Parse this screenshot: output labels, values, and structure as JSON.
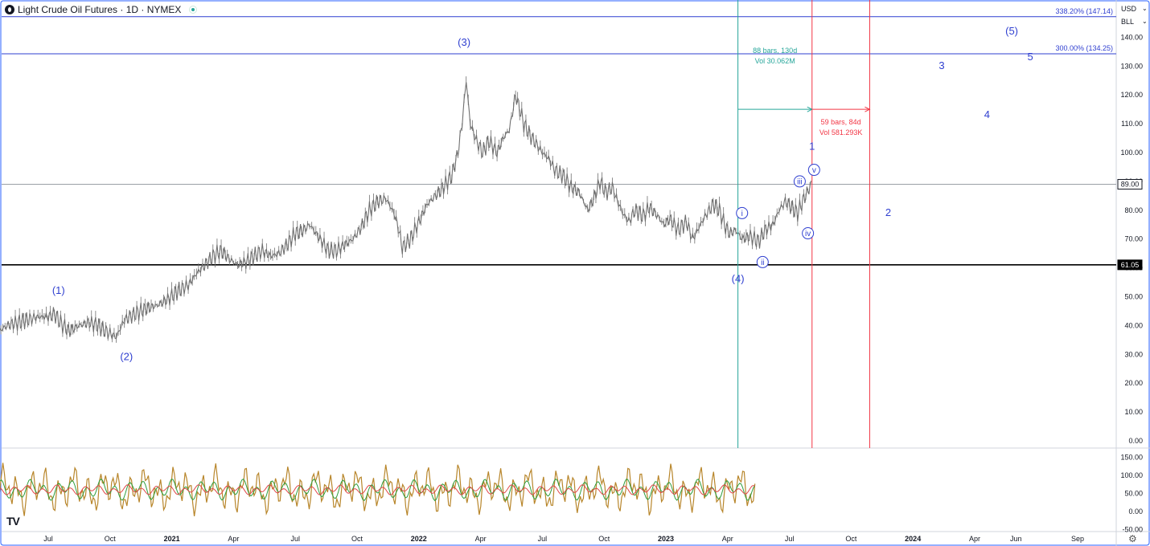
{
  "header": {
    "title": "Light Crude Oil Futures · 1D · NYMEX"
  },
  "price_axis": {
    "currency": "USD",
    "unit": "BLL"
  },
  "chart_data": {
    "type": "line",
    "symbol": "Light Crude Oil Futures",
    "interval": "1D",
    "exchange": "NYMEX",
    "y_axis_range": [
      0,
      150
    ],
    "y_ticks": [
      "140.00",
      "130.00",
      "120.00",
      "110.00",
      "100.00",
      "90.00",
      "80.00",
      "70.00",
      "60.00",
      "50.00",
      "40.00",
      "30.00",
      "20.00",
      "10.00",
      "0.00"
    ],
    "x_ticks": [
      "Jul",
      "Oct",
      "2021",
      "Apr",
      "Jul",
      "Oct",
      "2022",
      "Apr",
      "Jul",
      "Oct",
      "2023",
      "Apr",
      "Jul",
      "Oct",
      "2024",
      "Apr",
      "Jun",
      "Sep"
    ],
    "x_tick_positions_months": [
      6,
      9,
      12,
      15,
      18,
      21,
      24,
      27,
      30,
      33,
      36,
      39,
      42,
      45,
      48,
      51,
      53,
      56
    ],
    "price_series": [
      [
        2.8,
        15
      ],
      [
        3.0,
        28
      ],
      [
        3.3,
        33
      ],
      [
        3.6,
        38
      ],
      [
        4.0,
        40
      ],
      [
        4.5,
        41
      ],
      [
        5.0,
        42
      ],
      [
        5.5,
        43
      ],
      [
        6.0,
        43
      ],
      [
        6.3,
        44
      ],
      [
        6.6,
        41
      ],
      [
        7.0,
        38
      ],
      [
        7.5,
        40
      ],
      [
        8.0,
        41
      ],
      [
        8.4,
        40
      ],
      [
        8.8,
        38
      ],
      [
        9.3,
        36
      ],
      [
        9.7,
        42
      ],
      [
        10.2,
        44
      ],
      [
        10.8,
        46
      ],
      [
        11.3,
        47
      ],
      [
        11.8,
        49
      ],
      [
        12.3,
        52
      ],
      [
        12.8,
        54
      ],
      [
        13.2,
        58
      ],
      [
        13.6,
        61
      ],
      [
        14.0,
        64
      ],
      [
        14.4,
        66
      ],
      [
        14.8,
        63
      ],
      [
        15.2,
        61
      ],
      [
        15.6,
        62
      ],
      [
        16.0,
        64
      ],
      [
        16.4,
        66
      ],
      [
        16.8,
        64
      ],
      [
        17.2,
        65
      ],
      [
        17.6,
        68
      ],
      [
        18.0,
        72
      ],
      [
        18.4,
        73
      ],
      [
        18.7,
        75
      ],
      [
        19.0,
        72
      ],
      [
        19.3,
        69
      ],
      [
        19.6,
        66
      ],
      [
        20.0,
        66
      ],
      [
        20.4,
        68
      ],
      [
        20.8,
        70
      ],
      [
        21.2,
        74
      ],
      [
        21.6,
        80
      ],
      [
        22.0,
        83
      ],
      [
        22.4,
        84
      ],
      [
        22.8,
        79
      ],
      [
        23.0,
        74
      ],
      [
        23.2,
        67
      ],
      [
        23.6,
        70
      ],
      [
        24.0,
        76
      ],
      [
        24.4,
        82
      ],
      [
        24.8,
        85
      ],
      [
        25.2,
        88
      ],
      [
        25.6,
        92
      ],
      [
        25.9,
        100
      ],
      [
        26.1,
        110
      ],
      [
        26.3,
        125
      ],
      [
        26.5,
        110
      ],
      [
        26.8,
        104
      ],
      [
        27.1,
        100
      ],
      [
        27.4,
        104
      ],
      [
        27.8,
        100
      ],
      [
        28.1,
        105
      ],
      [
        28.4,
        108
      ],
      [
        28.7,
        120
      ],
      [
        28.9,
        115
      ],
      [
        29.1,
        110
      ],
      [
        29.4,
        106
      ],
      [
        29.8,
        102
      ],
      [
        30.0,
        100
      ],
      [
        30.3,
        98
      ],
      [
        30.6,
        94
      ],
      [
        31.0,
        92
      ],
      [
        31.4,
        88
      ],
      [
        31.8,
        86
      ],
      [
        32.2,
        80
      ],
      [
        32.5,
        84
      ],
      [
        32.8,
        90
      ],
      [
        33.1,
        86
      ],
      [
        33.4,
        88
      ],
      [
        33.6,
        84
      ],
      [
        33.9,
        79
      ],
      [
        34.2,
        76
      ],
      [
        34.5,
        80
      ],
      [
        34.9,
        78
      ],
      [
        35.2,
        81
      ],
      [
        35.6,
        78
      ],
      [
        35.9,
        75
      ],
      [
        36.2,
        77
      ],
      [
        36.6,
        73
      ],
      [
        37.0,
        76
      ],
      [
        37.3,
        70
      ],
      [
        37.6,
        74
      ],
      [
        38.0,
        79
      ],
      [
        38.3,
        82
      ],
      [
        38.6,
        80
      ],
      [
        38.9,
        74
      ],
      [
        39.1,
        72
      ],
      [
        39.4,
        73
      ],
      [
        39.7,
        70
      ],
      [
        40.1,
        71
      ],
      [
        40.5,
        69
      ],
      [
        40.8,
        73
      ],
      [
        41.2,
        75
      ],
      [
        41.5,
        80
      ],
      [
        41.8,
        83
      ],
      [
        42.1,
        81
      ],
      [
        42.4,
        79
      ],
      [
        42.7,
        84
      ],
      [
        43.0,
        88
      ],
      [
        43.1,
        90
      ]
    ],
    "lines": [
      {
        "label": "338.20% (147.14)",
        "value": 147.14,
        "color": "#2f3fd0"
      },
      {
        "label": "300.00% (134.25)",
        "value": 134.25,
        "color": "#2f3fd0"
      },
      {
        "label": "89.00",
        "value": 89.0,
        "color": "#9aa0a6"
      },
      {
        "label": "61.05",
        "value": 61.05,
        "color": "#000000"
      }
    ],
    "price_labels": [
      "89.00",
      "61.05"
    ],
    "wave_labels": [
      {
        "text": "(1)",
        "t": 6.5,
        "v": 51
      },
      {
        "text": "(2)",
        "t": 9.8,
        "v": 28
      },
      {
        "text": "(3)",
        "t": 26.2,
        "v": 137
      },
      {
        "text": "(4)",
        "t": 39.5,
        "v": 55
      },
      {
        "text": "(5)",
        "t": 52.8,
        "v": 141
      },
      {
        "text": "1",
        "t": 43.1,
        "v": 101
      },
      {
        "text": "2",
        "t": 46.8,
        "v": 78
      },
      {
        "text": "3",
        "t": 49.4,
        "v": 129
      },
      {
        "text": "4",
        "t": 51.6,
        "v": 112
      },
      {
        "text": "5",
        "t": 53.7,
        "v": 132
      }
    ],
    "circled_labels": [
      {
        "text": "i",
        "t": 39.7,
        "v": 79
      },
      {
        "text": "ii",
        "t": 40.7,
        "v": 62
      },
      {
        "text": "iii",
        "t": 42.5,
        "v": 90
      },
      {
        "text": "iv",
        "t": 42.9,
        "v": 72
      },
      {
        "text": "v",
        "t": 43.2,
        "v": 94
      }
    ],
    "measure_green": {
      "t0": 39.5,
      "t1": 43.1,
      "v_arrow": 115,
      "text1": "88 bars, 130d",
      "text2": "Vol 30.062M",
      "color": "#26a69a"
    },
    "measure_red": {
      "t0": 43.1,
      "t1": 45.9,
      "v_arrow": 115,
      "text1": "59 bars, 84d",
      "text2": "Vol 581.293K",
      "color": "#f23645"
    },
    "oscillator": {
      "ticks": [
        "150.00",
        "100.00",
        "50.00",
        "0.00",
        "-50.00"
      ],
      "range": [
        -50,
        150
      ]
    }
  }
}
